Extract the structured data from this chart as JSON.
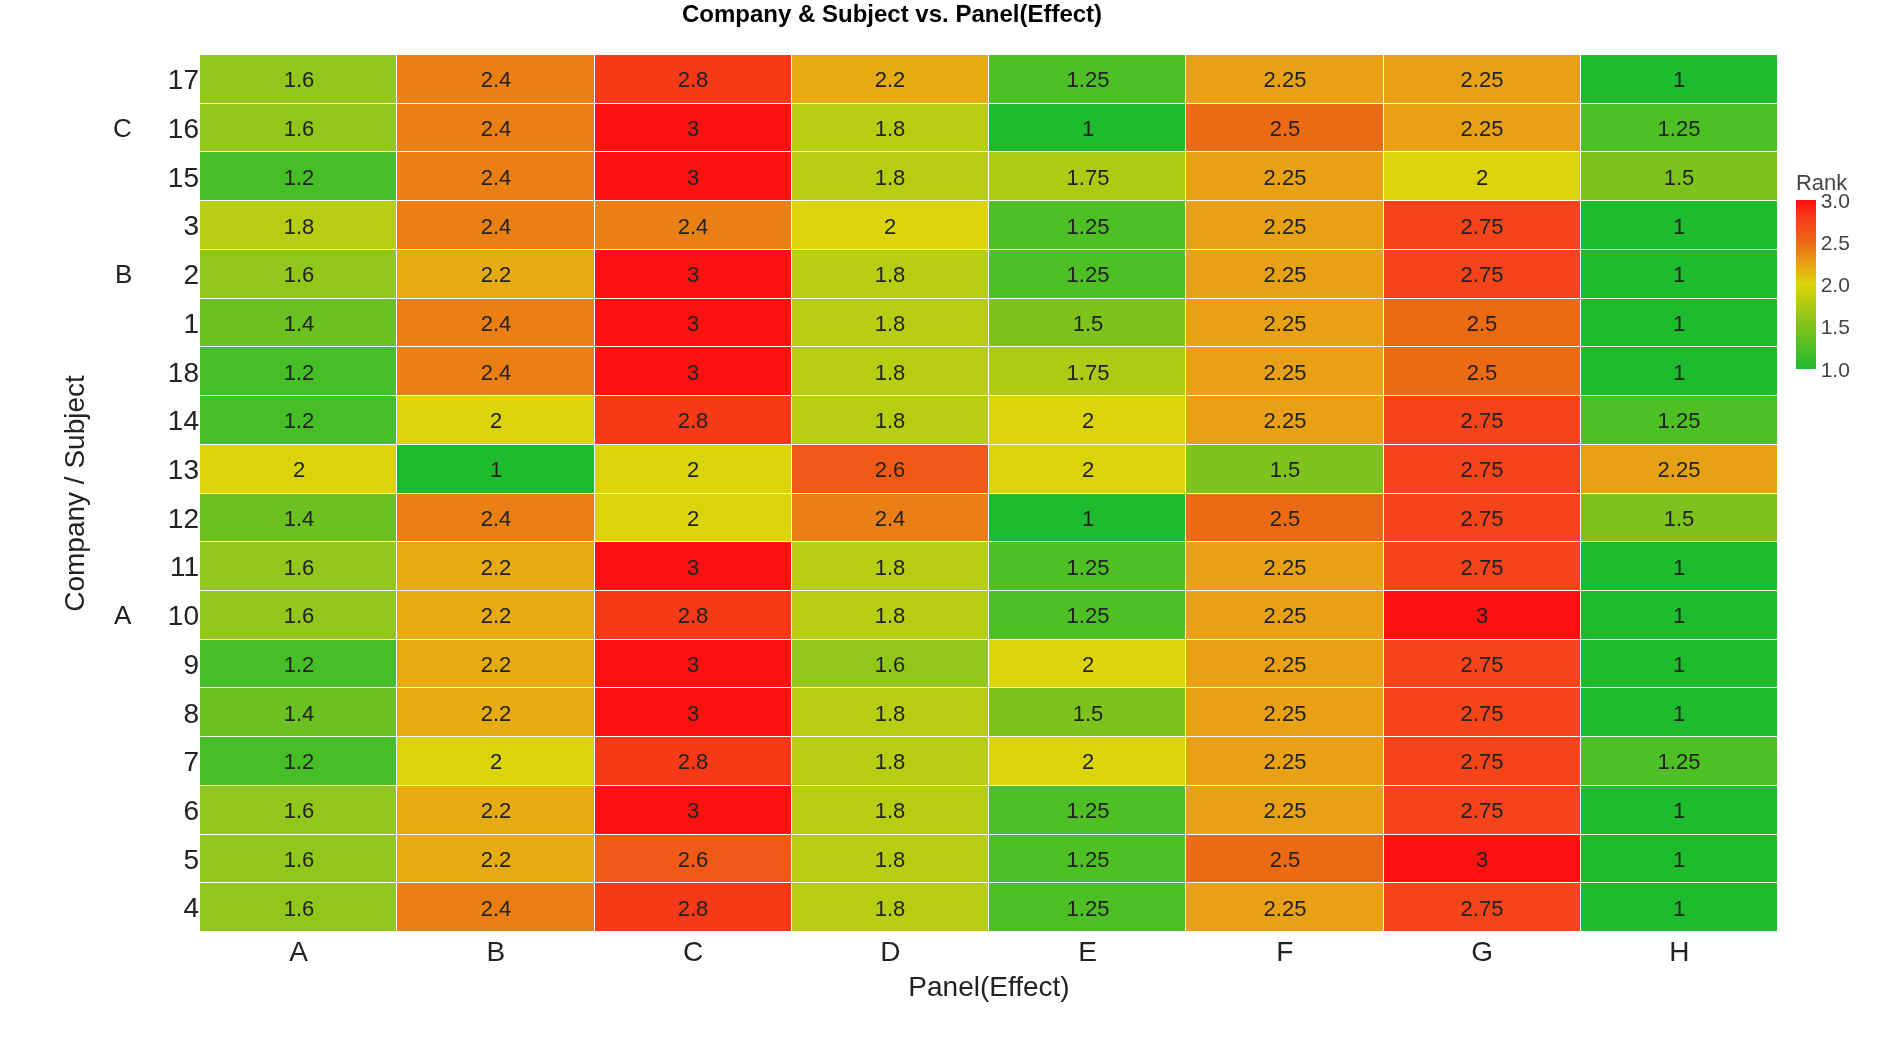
{
  "chart_data": {
    "type": "heatmap",
    "title": "Company & Subject vs. Panel(Effect)",
    "xlabel": "Panel(Effect)",
    "ylabel": "Company / Subject",
    "clabel": "Rank",
    "categories": [
      "A",
      "B",
      "C",
      "D",
      "E",
      "F",
      "G",
      "H"
    ],
    "y_categories": [
      "17",
      "16",
      "15",
      "3",
      "2",
      "1",
      "18",
      "14",
      "13",
      "12",
      "11",
      "10",
      "9",
      "8",
      "7",
      "6",
      "5",
      "4"
    ],
    "cells": [
      [
        1.6,
        2.4,
        2.8,
        2.2,
        1.25,
        2.25,
        2.25,
        1
      ],
      [
        1.6,
        2.4,
        3,
        1.8,
        1,
        2.5,
        2.25,
        1.25
      ],
      [
        1.2,
        2.4,
        3,
        1.8,
        1.75,
        2.25,
        2,
        1.5
      ],
      [
        1.8,
        2.4,
        2.4,
        2,
        1.25,
        2.25,
        2.75,
        1
      ],
      [
        1.6,
        2.2,
        3,
        1.8,
        1.25,
        2.25,
        2.75,
        1
      ],
      [
        1.4,
        2.4,
        3,
        1.8,
        1.5,
        2.25,
        2.5,
        1
      ],
      [
        1.2,
        2.4,
        3,
        1.8,
        1.75,
        2.25,
        2.5,
        1
      ],
      [
        1.2,
        2,
        2.8,
        1.8,
        2,
        2.25,
        2.75,
        1.25
      ],
      [
        2,
        1,
        2,
        2.6,
        2,
        1.5,
        2.75,
        2.25
      ],
      [
        1.4,
        2.4,
        2,
        2.4,
        1,
        2.5,
        2.75,
        1.5
      ],
      [
        1.6,
        2.2,
        3,
        1.8,
        1.25,
        2.25,
        2.75,
        1
      ],
      [
        1.6,
        2.2,
        2.8,
        1.8,
        1.25,
        2.25,
        3,
        1
      ],
      [
        1.2,
        2.2,
        3,
        1.6,
        2,
        2.25,
        2.75,
        1
      ],
      [
        1.4,
        2.2,
        3,
        1.8,
        1.5,
        2.25,
        2.75,
        1
      ],
      [
        1.2,
        2,
        2.8,
        1.8,
        2,
        2.25,
        2.75,
        1.25
      ],
      [
        1.6,
        2.2,
        3,
        1.8,
        1.25,
        2.25,
        2.75,
        1
      ],
      [
        1.6,
        2.2,
        2.6,
        1.8,
        1.25,
        2.5,
        3,
        1
      ],
      [
        1.6,
        2.4,
        2.8,
        1.8,
        1.25,
        2.25,
        2.75,
        1
      ]
    ],
    "clim": [
      1,
      3
    ],
    "cticks": [
      {
        "value": 1,
        "label": "1.0"
      },
      {
        "value": 1.5,
        "label": "1.5"
      },
      {
        "value": 2,
        "label": "2.0"
      },
      {
        "value": 2.5,
        "label": "2.5"
      },
      {
        "value": 3,
        "label": "3.0"
      }
    ],
    "data_labels": true,
    "y2_categories": [
      null,
      "C",
      null,
      null,
      "B",
      null,
      null,
      null,
      null,
      null,
      null,
      "A",
      null,
      null,
      null,
      null,
      null,
      null
    ]
  }
}
